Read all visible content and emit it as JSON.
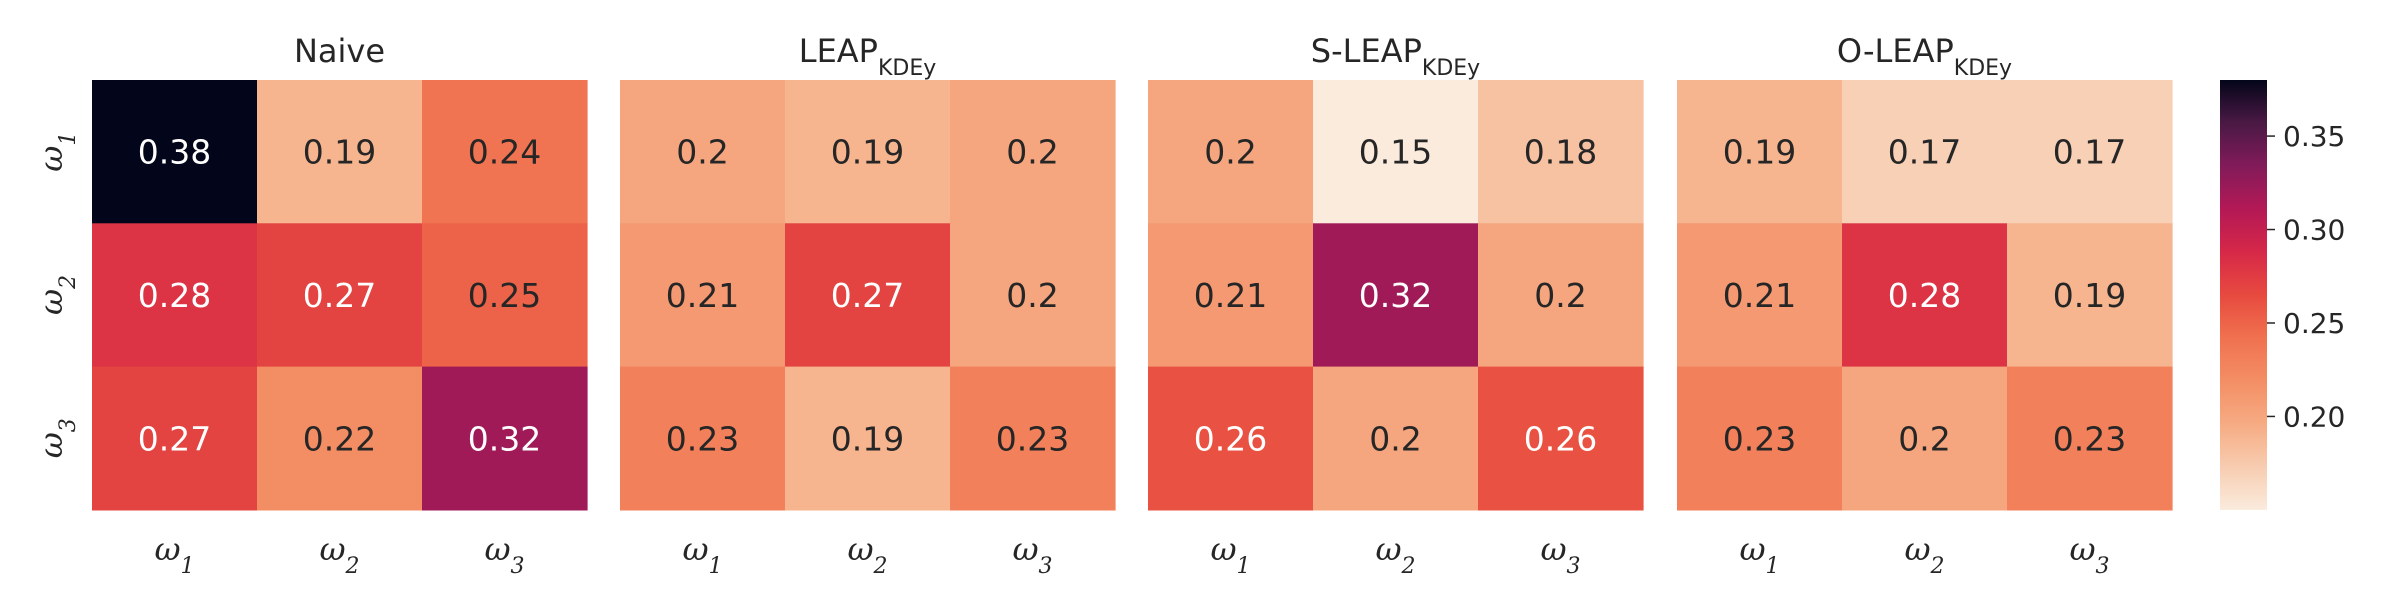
{
  "chart_data": {
    "type": "heatmap",
    "color_range": [
      0.15,
      0.38
    ],
    "colorbar_ticks": [
      "0.20",
      "0.25",
      "0.30",
      "0.35"
    ],
    "colorbar_tick_values": [
      0.2,
      0.25,
      0.3,
      0.35
    ],
    "row_labels": [
      {
        "base": "ω",
        "sub": "1"
      },
      {
        "base": "ω",
        "sub": "2"
      },
      {
        "base": "ω",
        "sub": "3"
      }
    ],
    "col_labels": [
      {
        "base": "ω",
        "sub": "1"
      },
      {
        "base": "ω",
        "sub": "2"
      },
      {
        "base": "ω",
        "sub": "3"
      }
    ],
    "panels": [
      {
        "title": "Naive",
        "title_sub": "",
        "values": [
          [
            0.38,
            0.19,
            0.24
          ],
          [
            0.28,
            0.27,
            0.25
          ],
          [
            0.27,
            0.22,
            0.32
          ]
        ],
        "labels": [
          [
            "0.38",
            "0.19",
            "0.24"
          ],
          [
            "0.28",
            "0.27",
            "0.25"
          ],
          [
            "0.27",
            "0.22",
            "0.32"
          ]
        ]
      },
      {
        "title": "LEAP",
        "title_sub": "KDEy",
        "values": [
          [
            0.2,
            0.19,
            0.2
          ],
          [
            0.21,
            0.27,
            0.2
          ],
          [
            0.23,
            0.19,
            0.23
          ]
        ],
        "labels": [
          [
            "0.2",
            "0.19",
            "0.2"
          ],
          [
            "0.21",
            "0.27",
            "0.2"
          ],
          [
            "0.23",
            "0.19",
            "0.23"
          ]
        ]
      },
      {
        "title": "S-LEAP",
        "title_sub": "KDEy",
        "values": [
          [
            0.2,
            0.15,
            0.18
          ],
          [
            0.21,
            0.32,
            0.2
          ],
          [
            0.26,
            0.2,
            0.26
          ]
        ],
        "labels": [
          [
            "0.2",
            "0.15",
            "0.18"
          ],
          [
            "0.21",
            "0.32",
            "0.2"
          ],
          [
            "0.26",
            "0.2",
            "0.26"
          ]
        ]
      },
      {
        "title": "O-LEAP",
        "title_sub": "KDEy",
        "values": [
          [
            0.19,
            0.17,
            0.17
          ],
          [
            0.21,
            0.28,
            0.19
          ],
          [
            0.23,
            0.2,
            0.23
          ]
        ],
        "labels": [
          [
            "0.19",
            "0.17",
            "0.17"
          ],
          [
            "0.21",
            "0.28",
            "0.19"
          ],
          [
            "0.23",
            "0.2",
            "0.23"
          ]
        ]
      }
    ],
    "colormap": "rocket_r"
  }
}
